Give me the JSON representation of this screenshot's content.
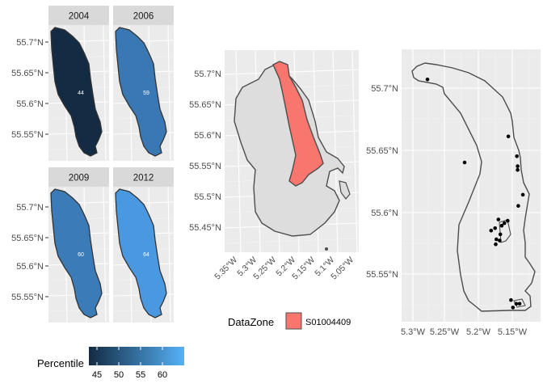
{
  "facets": [
    {
      "year": "2004",
      "percentile": 44,
      "fill": "#132B43"
    },
    {
      "year": "2006",
      "percentile": 59,
      "fill": "#3A78B4"
    },
    {
      "year": "2009",
      "percentile": 60,
      "fill": "#3B7BB8"
    },
    {
      "year": "2012",
      "percentile": 64,
      "fill": "#4A99E0"
    }
  ],
  "small_y_ticks": [
    "55.7°N",
    "55.65°N",
    "55.6°N",
    "55.55°N"
  ],
  "middle_map": {
    "y_ticks": [
      "55.7°N",
      "55.65°N",
      "55.6°N",
      "55.55°N",
      "55.5°N",
      "55.45°N"
    ],
    "x_ticks": [
      "5.35°W",
      "5.3°W",
      "5.25°W",
      "5.2°W",
      "5.15°W",
      "5.1°W",
      "5.05°W"
    ],
    "legend_title": "DataZone",
    "legend_item": "S01004409",
    "legend_color": "#F8766D"
  },
  "right_map": {
    "y_ticks": [
      "55.7°N",
      "55.65°N",
      "55.6°N",
      "55.55°N"
    ],
    "x_ticks": [
      "5.3°W",
      "5.25°W",
      "5.2°W",
      "5.15°W"
    ]
  },
  "colorbar": {
    "title": "Percentile",
    "labels": [
      "45",
      "50",
      "55",
      "60"
    ],
    "low_color": "#132B43",
    "high_color": "#56B1F7"
  },
  "chart_data": {
    "type": "scatter",
    "points": [
      {
        "lon": -5.278,
        "lat": 55.707
      },
      {
        "lon": -5.222,
        "lat": 55.64
      },
      {
        "lon": -5.156,
        "lat": 55.661
      },
      {
        "lon": -5.143,
        "lat": 55.645
      },
      {
        "lon": -5.142,
        "lat": 55.637
      },
      {
        "lon": -5.142,
        "lat": 55.634
      },
      {
        "lon": -5.134,
        "lat": 55.614
      },
      {
        "lon": -5.141,
        "lat": 55.605
      },
      {
        "lon": -5.157,
        "lat": 55.593
      },
      {
        "lon": -5.171,
        "lat": 55.594
      },
      {
        "lon": -5.162,
        "lat": 55.591
      },
      {
        "lon": -5.166,
        "lat": 55.589
      },
      {
        "lon": -5.176,
        "lat": 55.587
      },
      {
        "lon": -5.182,
        "lat": 55.585
      },
      {
        "lon": -5.168,
        "lat": 55.582
      },
      {
        "lon": -5.174,
        "lat": 55.578
      },
      {
        "lon": -5.169,
        "lat": 55.577
      },
      {
        "lon": -5.175,
        "lat": 55.574
      },
      {
        "lon": -5.152,
        "lat": 55.529
      },
      {
        "lon": -5.144,
        "lat": 55.526
      },
      {
        "lon": -5.139,
        "lat": 55.526
      },
      {
        "lon": -5.149,
        "lat": 55.523
      }
    ]
  }
}
